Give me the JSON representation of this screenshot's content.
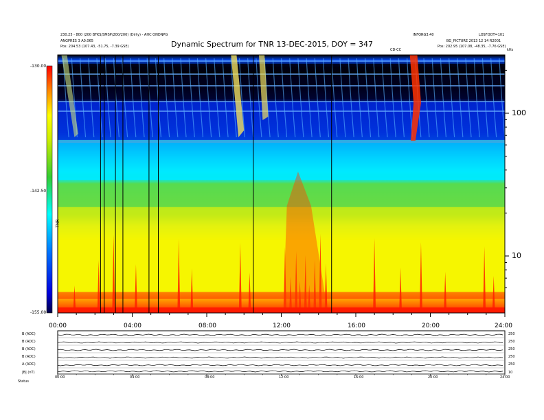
{
  "header": {
    "left_line1": "230.25 - 800 (200 BFKS/SMSP/200/200) (Dirty) - AHC ONDNPG",
    "left_line2": "ANGPRES 3  A0.065",
    "left_line3": "Pos:     204.53 (107.43, -51.75, -7.39 GSE)",
    "right_line1": "INFORG3.40",
    "right_line2": "LOSFOOT=101",
    "right_line3": "BG_PICTURE 2013 12 14 R2001",
    "right_line4": "Pos:     202.95 (107.08, -48.35, -7.76 GSE)",
    "mid_label": "CD-CC",
    "corner_label": "kHz"
  },
  "title": "Dynamic Spectrum for TNR 13-DEC-2015, DOY = 347",
  "colorbar": {
    "top_label": "-130.00",
    "mid_label": "-142.50",
    "bottom_label": "-155.00",
    "side_label": "TNR"
  },
  "chart_data": {
    "type": "heatmap",
    "title": "Dynamic Spectrum for TNR 13-DEC-2015, DOY = 347",
    "x_tick_labels": [
      "00:00",
      "04:00",
      "08:00",
      "12:00",
      "16:00",
      "20:00",
      "24:00"
    ],
    "x_range_hours": [
      0,
      24
    ],
    "y_tick_labels": [
      "100",
      "10"
    ],
    "y_scale": "log",
    "y_unit": "kHz",
    "colorbar_range": [
      -155.0,
      -130.0
    ],
    "colormap": [
      "#000033",
      "#0000cc",
      "#0066ff",
      "#00ffff",
      "#33cc33",
      "#ffff00",
      "#ff8800",
      "#ff0000"
    ],
    "vertical_gap_lines_hours": [
      2.3,
      2.5,
      3.1,
      3.5,
      4.9,
      5.4,
      10.5,
      14.7
    ],
    "bands": [
      {
        "color": "#000000",
        "from_kHz": 200,
        "to_kHz": 120
      },
      {
        "color": "#0022cc",
        "from_kHz": 120,
        "to_kHz": 65
      },
      {
        "color": "#00e5ff",
        "from_kHz": 65,
        "to_kHz": 34
      },
      {
        "color": "#5ad84a",
        "from_kHz": 34,
        "to_kHz": 22
      },
      {
        "color": "#f4f400",
        "from_kHz": 22,
        "to_kHz": 5.6
      },
      {
        "color": "#ff2000",
        "from_kHz": 5.6,
        "to_kHz": 5.0
      }
    ]
  },
  "panels": {
    "labels": [
      "B (ADC)",
      "B (ADC)",
      "B (ADC)",
      "B (ADC)",
      "A (ADC)",
      "|B| (nT)"
    ],
    "right_labels": [
      "250",
      "250",
      "250",
      "250",
      "250",
      "10"
    ],
    "x_tick_labels": [
      "00:00",
      "04:00",
      "08:00",
      "12:00",
      "16:00",
      "20:00",
      "24:00"
    ],
    "footer_label": "Status"
  }
}
